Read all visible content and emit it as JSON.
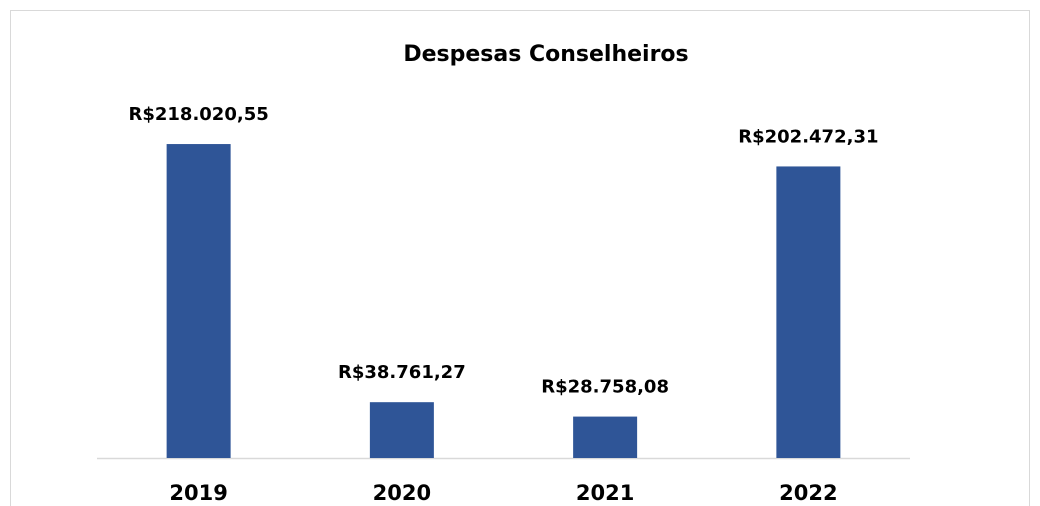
{
  "chart_data": {
    "type": "bar",
    "title": "Despesas Conselheiros",
    "categories": [
      "2019",
      "2020",
      "2021",
      "2022"
    ],
    "values": [
      218020.55,
      38761.27,
      28758.08,
      202472.31
    ],
    "value_labels": [
      "R$218.020,55",
      "R$38.761,27",
      "R$28.758,08",
      "R$202.472,31"
    ],
    "color": "#2f5597",
    "ylim": [
      0,
      250000
    ]
  }
}
